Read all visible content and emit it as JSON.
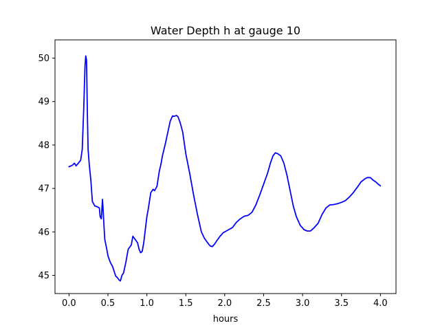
{
  "chart_data": {
    "type": "line",
    "title": "Water Depth h at gauge 10",
    "xlabel": "hours",
    "ylabel": "",
    "xlim": [
      -0.18,
      4.2
    ],
    "ylim": [
      44.58,
      50.42
    ],
    "xticks": [
      0.0,
      0.5,
      1.0,
      1.5,
      2.0,
      2.5,
      3.0,
      3.5,
      4.0
    ],
    "xtick_labels": [
      "0.0",
      "0.5",
      "1.0",
      "1.5",
      "2.0",
      "2.5",
      "3.0",
      "3.5",
      "4.0"
    ],
    "yticks": [
      45,
      46,
      47,
      48,
      49,
      50
    ],
    "ytick_labels": [
      "45",
      "46",
      "47",
      "48",
      "49",
      "50"
    ],
    "grid": false,
    "series": [
      {
        "name": "",
        "color": "#0000ff",
        "x": [
          0.0,
          0.04,
          0.07,
          0.09,
          0.11,
          0.15,
          0.17,
          0.19,
          0.205,
          0.215,
          0.225,
          0.235,
          0.245,
          0.26,
          0.28,
          0.3,
          0.33,
          0.36,
          0.39,
          0.4,
          0.415,
          0.43,
          0.44,
          0.45,
          0.46,
          0.48,
          0.5,
          0.53,
          0.56,
          0.6,
          0.62,
          0.64,
          0.66,
          0.68,
          0.7,
          0.73,
          0.76,
          0.78,
          0.8,
          0.82,
          0.84,
          0.86,
          0.88,
          0.9,
          0.92,
          0.94,
          0.96,
          0.98,
          1.0,
          1.02,
          1.05,
          1.08,
          1.1,
          1.13,
          1.16,
          1.18,
          1.2,
          1.24,
          1.27,
          1.3,
          1.33,
          1.35,
          1.38,
          1.4,
          1.43,
          1.46,
          1.5,
          1.55,
          1.6,
          1.65,
          1.7,
          1.74,
          1.78,
          1.81,
          1.84,
          1.87,
          1.9,
          1.94,
          1.98,
          2.02,
          2.05,
          2.1,
          2.15,
          2.2,
          2.25,
          2.3,
          2.35,
          2.4,
          2.45,
          2.5,
          2.55,
          2.59,
          2.62,
          2.65,
          2.68,
          2.72,
          2.76,
          2.8,
          2.84,
          2.88,
          2.92,
          2.97,
          3.02,
          3.06,
          3.1,
          3.14,
          3.2,
          3.25,
          3.3,
          3.35,
          3.4,
          3.45,
          3.5,
          3.55,
          3.6,
          3.65,
          3.7,
          3.75,
          3.8,
          3.83,
          3.87,
          3.9,
          3.94,
          3.97,
          4.0
        ],
        "y": [
          47.5,
          47.53,
          47.58,
          47.52,
          47.56,
          47.65,
          47.9,
          48.9,
          49.8,
          50.05,
          49.95,
          48.8,
          47.9,
          47.55,
          47.2,
          46.7,
          46.6,
          46.58,
          46.55,
          46.35,
          46.3,
          46.75,
          46.45,
          46.1,
          45.82,
          45.65,
          45.45,
          45.3,
          45.2,
          44.98,
          44.95,
          44.9,
          44.87,
          45.0,
          45.05,
          45.3,
          45.6,
          45.65,
          45.7,
          45.9,
          45.85,
          45.8,
          45.75,
          45.6,
          45.52,
          45.55,
          45.75,
          46.05,
          46.35,
          46.55,
          46.9,
          46.98,
          46.95,
          47.05,
          47.4,
          47.55,
          47.75,
          48.05,
          48.3,
          48.55,
          48.67,
          48.66,
          48.68,
          48.65,
          48.5,
          48.3,
          47.8,
          47.35,
          46.85,
          46.4,
          46.0,
          45.85,
          45.75,
          45.68,
          45.66,
          45.72,
          45.8,
          45.9,
          45.98,
          46.02,
          46.05,
          46.1,
          46.22,
          46.3,
          46.36,
          46.38,
          46.45,
          46.62,
          46.85,
          47.1,
          47.35,
          47.6,
          47.75,
          47.82,
          47.8,
          47.75,
          47.58,
          47.3,
          46.95,
          46.6,
          46.35,
          46.15,
          46.05,
          46.02,
          46.02,
          46.08,
          46.2,
          46.4,
          46.55,
          46.62,
          46.63,
          46.65,
          46.68,
          46.72,
          46.8,
          46.9,
          47.02,
          47.15,
          47.22,
          47.25,
          47.25,
          47.2,
          47.15,
          47.1,
          47.06
        ]
      }
    ]
  }
}
